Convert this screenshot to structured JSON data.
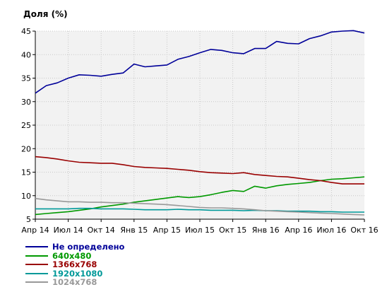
{
  "chart_data": {
    "type": "line",
    "title": "",
    "ylabel": "Доля (%)",
    "xlabel": "",
    "ylim": [
      5,
      45
    ],
    "y_ticks": [
      5,
      10,
      15,
      20,
      25,
      30,
      35,
      40,
      45
    ],
    "grid": true,
    "legend_position": "bottom-left",
    "x_tick_labels": [
      "Апр 14",
      "Июл 14",
      "Окт 14",
      "Янв 15",
      "Апр 15",
      "Июл 15",
      "Окт 15",
      "Янв 16",
      "Апр 16",
      "Июл 16",
      "Окт 16"
    ],
    "series": [
      {
        "name": "Не определено",
        "color": "#000099",
        "values": [
          31.8,
          33.4,
          34.0,
          35.0,
          35.7,
          35.6,
          35.4,
          35.8,
          36.1,
          38.0,
          37.4,
          37.6,
          37.8,
          39.0,
          39.6,
          40.4,
          41.1,
          40.9,
          40.4,
          40.2,
          41.3,
          41.3,
          42.8,
          42.4,
          42.3,
          43.4,
          44.0,
          44.8,
          45.0,
          45.1,
          44.6
        ]
      },
      {
        "name": "640x480",
        "color": "#009900",
        "values": [
          6.0,
          6.2,
          6.4,
          6.6,
          6.9,
          7.2,
          7.6,
          7.9,
          8.2,
          8.6,
          8.9,
          9.2,
          9.5,
          9.8,
          9.6,
          9.8,
          10.2,
          10.7,
          11.1,
          10.9,
          12.0,
          11.6,
          12.1,
          12.4,
          12.6,
          12.8,
          13.2,
          13.5,
          13.6,
          13.8,
          14.0
        ]
      },
      {
        "name": "1366x768",
        "color": "#990000",
        "values": [
          18.3,
          18.1,
          17.8,
          17.4,
          17.1,
          17.0,
          16.9,
          16.9,
          16.6,
          16.2,
          16.0,
          15.9,
          15.8,
          15.6,
          15.4,
          15.1,
          14.9,
          14.8,
          14.7,
          14.9,
          14.5,
          14.3,
          14.1,
          14.0,
          13.7,
          13.4,
          13.2,
          12.8,
          12.5,
          12.5,
          12.5
        ]
      },
      {
        "name": "1920x1080",
        "color": "#009999",
        "values": [
          7.2,
          7.2,
          7.2,
          7.2,
          7.3,
          7.3,
          7.2,
          7.2,
          7.2,
          7.1,
          7.0,
          7.0,
          7.0,
          7.1,
          7.0,
          7.0,
          6.9,
          6.9,
          6.9,
          6.8,
          6.9,
          6.8,
          6.8,
          6.7,
          6.7,
          6.7,
          6.6,
          6.6,
          6.5,
          6.5,
          6.5
        ]
      },
      {
        "name": "1024x768",
        "color": "#999999",
        "values": [
          9.4,
          9.1,
          8.9,
          8.7,
          8.7,
          8.6,
          8.6,
          8.5,
          8.5,
          8.4,
          8.3,
          8.2,
          8.1,
          7.9,
          7.7,
          7.5,
          7.4,
          7.4,
          7.3,
          7.2,
          7.0,
          6.8,
          6.7,
          6.6,
          6.5,
          6.4,
          6.3,
          6.2,
          6.1,
          6.0,
          5.9
        ]
      }
    ]
  }
}
